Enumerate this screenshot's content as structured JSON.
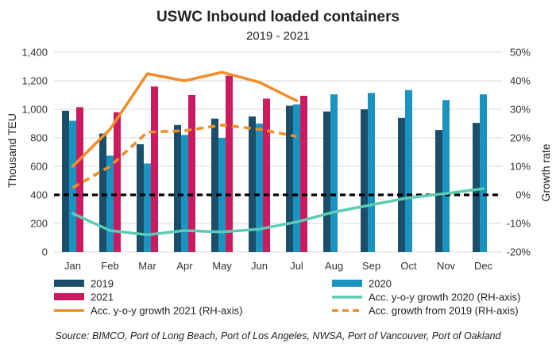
{
  "chart_data": {
    "type": "bar",
    "title": "USWC Inbound loaded containers",
    "subtitle": "2019 - 2021",
    "ylabel": "Thousand TEU",
    "y2label": "Growth rate",
    "ylim": [
      0,
      1400
    ],
    "y2lim": [
      -20,
      50
    ],
    "yticks": [
      "0",
      "200",
      "400",
      "600",
      "800",
      "1,000",
      "1,200",
      "1,400"
    ],
    "y2ticks": [
      "-20%",
      "-10%",
      "0%",
      "10%",
      "20%",
      "30%",
      "40%",
      "50%"
    ],
    "categories": [
      "Jan",
      "Feb",
      "Mar",
      "Apr",
      "May",
      "Jun",
      "Jul",
      "Aug",
      "Sep",
      "Oct",
      "Nov",
      "Dec"
    ],
    "series": [
      {
        "name": "2019",
        "kind": "bar",
        "color": "#1b4e6b",
        "values": [
          990,
          830,
          755,
          890,
          935,
          950,
          1025,
          985,
          1000,
          940,
          855,
          905
        ]
      },
      {
        "name": "2020",
        "kind": "bar",
        "color": "#1a93c1",
        "values": [
          920,
          675,
          620,
          820,
          800,
          900,
          1035,
          1105,
          1115,
          1135,
          1065,
          1105
        ]
      },
      {
        "name": "2021",
        "kind": "bar",
        "color": "#cc1a5e",
        "values": [
          1015,
          980,
          1160,
          1100,
          1235,
          1075,
          1095,
          null,
          null,
          null,
          null,
          null
        ]
      },
      {
        "name": "Acc. y-o-y growth 2020 (RH-axis)",
        "kind": "line",
        "axis": "right",
        "color": "#5ccbb6",
        "style": "solid",
        "values": [
          -6.5,
          -12.5,
          -14,
          -12.5,
          -13,
          -12,
          -9.5,
          -6,
          -3.5,
          -1,
          0.5,
          2.2
        ]
      },
      {
        "name": "Acc. y-o-y growth 2021 (RH-axis)",
        "kind": "line",
        "axis": "right",
        "color": "#f28c28",
        "style": "solid",
        "values": [
          10,
          23,
          42.5,
          40,
          43,
          39.5,
          33,
          null,
          null,
          null,
          null,
          null
        ]
      },
      {
        "name": "Acc. growth from 2019 (RH-axis)",
        "kind": "line",
        "axis": "right",
        "color": "#f28c28",
        "style": "dashed",
        "values": [
          2.5,
          10,
          22,
          22.5,
          24.5,
          23,
          20.5,
          null,
          null,
          null,
          null,
          null
        ]
      }
    ],
    "reference_line": {
      "axis": "right",
      "value": 0,
      "style": "dashed",
      "color": "#000000"
    },
    "legend": {
      "position": "bottom",
      "entries": [
        {
          "label": "2019",
          "color": "#1b4e6b",
          "marker": "bar"
        },
        {
          "label": "2020",
          "color": "#1a93c1",
          "marker": "bar"
        },
        {
          "label": "2021",
          "color": "#cc1a5e",
          "marker": "bar"
        },
        {
          "label": "Acc. y-o-y growth 2020 (RH-axis)",
          "color": "#5ccbb6",
          "marker": "line"
        },
        {
          "label": "Acc. y-o-y growth 2021 (RH-axis)",
          "color": "#f28c28",
          "marker": "line"
        },
        {
          "label": "Acc. growth from 2019 (RH-axis)",
          "color": "#f28c28",
          "marker": "dashed-line"
        }
      ]
    },
    "source": "Source: BIMCO, Port of Long Beach, Port of Los Angeles, NWSA, Port of Vancouver, Port of Oakland"
  }
}
